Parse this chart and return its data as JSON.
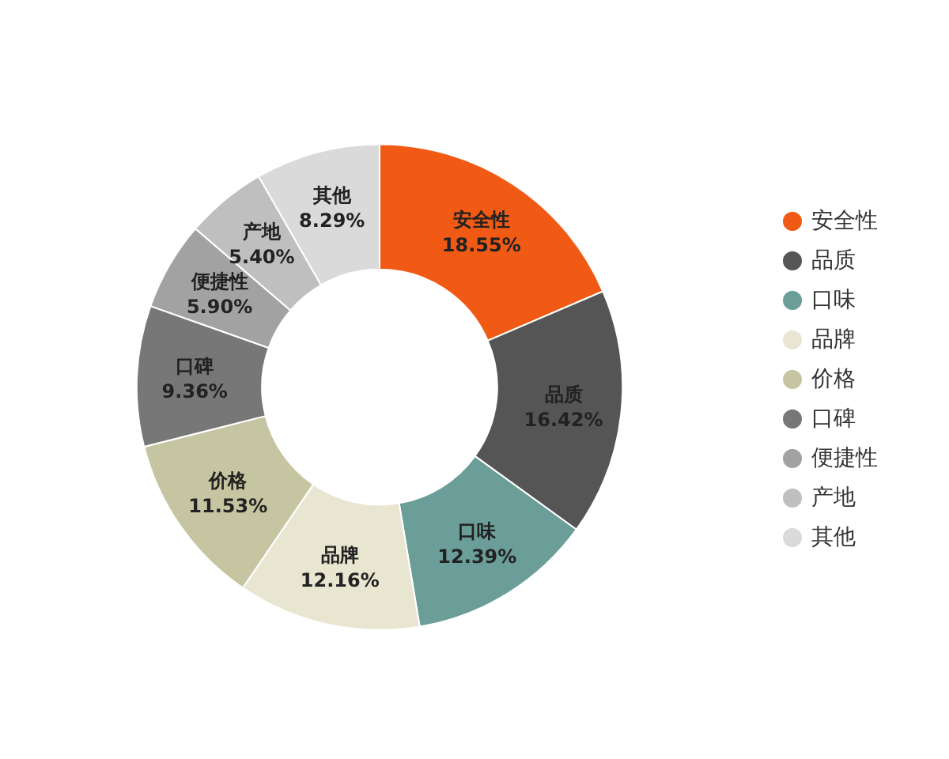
{
  "chart_data": {
    "type": "donut",
    "categories": [
      "安全性",
      "品质",
      "口味",
      "品牌",
      "价格",
      "口碑",
      "便捷性",
      "产地",
      "其他"
    ],
    "values": [
      18.55,
      16.42,
      12.39,
      12.16,
      11.53,
      9.36,
      5.9,
      5.4,
      8.29
    ],
    "value_labels": [
      "18.55%",
      "16.42%",
      "12.39%",
      "12.16%",
      "11.53%",
      "9.36%",
      "5.90%",
      "5.40%",
      "8.29%"
    ],
    "colors": [
      "#f05a14",
      "#555555",
      "#6b9e98",
      "#e8e6d0",
      "#c6c5a2",
      "#777777",
      "#a2a2a2",
      "#bfbfbf",
      "#dadada"
    ],
    "legend": "right"
  }
}
